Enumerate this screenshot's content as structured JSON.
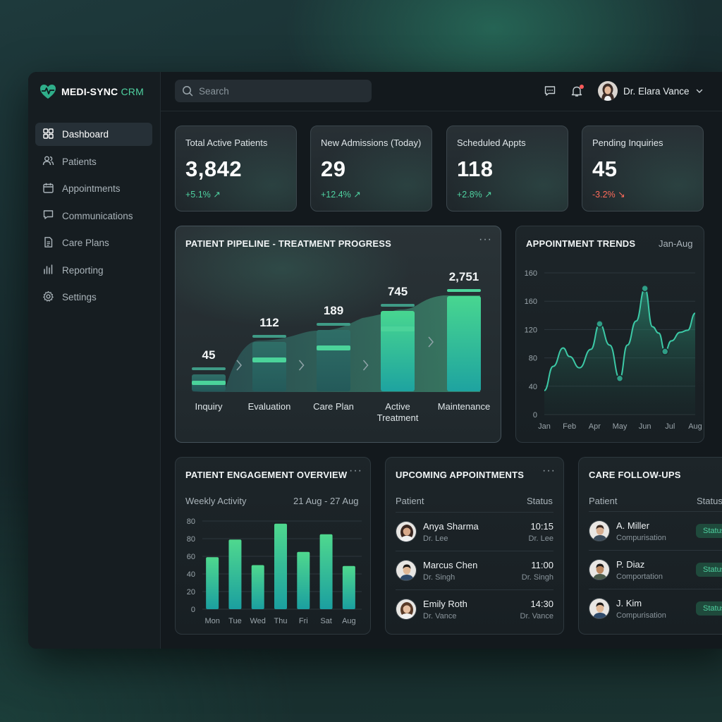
{
  "app": {
    "name": "MEDI-SYNC",
    "name_accent": "CRM",
    "accent_color": "#4fd1a0"
  },
  "sidebar": {
    "items": [
      {
        "label": "Dashboard",
        "icon": "grid-icon",
        "active": true
      },
      {
        "label": "Patients",
        "icon": "users-icon"
      },
      {
        "label": "Appointments",
        "icon": "calendar-icon"
      },
      {
        "label": "Communications",
        "icon": "message-icon"
      },
      {
        "label": "Care Plans",
        "icon": "document-icon"
      },
      {
        "label": "Reporting",
        "icon": "bar-chart-icon"
      },
      {
        "label": "Settings",
        "icon": "gear-icon"
      }
    ]
  },
  "topbar": {
    "search_placeholder": "Search",
    "user_name": "Dr. Elara Vance"
  },
  "stats": [
    {
      "label": "Total Active Patients",
      "value": "3,842",
      "change": "+5.1%",
      "direction": "up"
    },
    {
      "label": "New Admissions (Today)",
      "value": "29",
      "change": "+12.4%",
      "direction": "up"
    },
    {
      "label": "Scheduled Appts",
      "value": "118",
      "change": "+2.8%",
      "direction": "up"
    },
    {
      "label": "Pending Inquiries",
      "value": "45",
      "change": "-3.2%",
      "direction": "down"
    }
  ],
  "pipeline": {
    "title": "PATIENT PIPELINE - TREATMENT PROGRESS",
    "more": "···",
    "stages": [
      {
        "label": "Inquiry",
        "value": "45"
      },
      {
        "label": "Evaluation",
        "value": "112"
      },
      {
        "label": "Care Plan",
        "value": "189"
      },
      {
        "label": "Active Treatment",
        "value": "745"
      },
      {
        "label": "Maintenance",
        "value": "2,751"
      }
    ]
  },
  "trends": {
    "title": "APPOINTMENT TRENDS",
    "range": "Jan-Aug"
  },
  "engagement": {
    "title": "PATIENT ENGAGEMENT OVERVIEW",
    "more": "···",
    "subtitle": "Weekly Activity",
    "date_range": "21 Aug - 27 Aug"
  },
  "appointments": {
    "title": "UPCOMING APPOINTMENTS",
    "more": "···",
    "col_patient": "Patient",
    "col_status": "Status",
    "rows": [
      {
        "name": "Anya Sharma",
        "doctor": "Dr. Lee",
        "time": "10:15",
        "status_doctor": "Dr. Lee"
      },
      {
        "name": "Marcus Chen",
        "doctor": "Dr. Singh",
        "time": "11:00",
        "status_doctor": "Dr. Singh"
      },
      {
        "name": "Emily Roth",
        "doctor": "Dr. Vance",
        "time": "14:30",
        "status_doctor": "Dr. Vance"
      }
    ]
  },
  "followups": {
    "title": "CARE FOLLOW-UPS",
    "col_patient": "Patient",
    "col_status": "Status",
    "rows": [
      {
        "name": "A. Miller",
        "sub": "Compurisation",
        "status": "Status"
      },
      {
        "name": "P. Diaz",
        "sub": "Comportation",
        "status": "Status"
      },
      {
        "name": "J. Kim",
        "sub": "Compurisation",
        "status": "Status"
      }
    ]
  },
  "chart_data": [
    {
      "type": "area",
      "title": "APPOINTMENT TRENDS",
      "categories": [
        "Jan",
        "Feb",
        "Apr",
        "May",
        "Jun",
        "Jul",
        "Aug"
      ],
      "y_tick_labels": [
        "0",
        "40",
        "80",
        "120",
        "160",
        "160"
      ],
      "ylim": [
        0,
        200
      ],
      "grid": true,
      "series": [
        {
          "x": [
            0,
            0.35,
            0.75,
            1.0,
            1.4,
            1.85,
            2.2,
            2.6,
            3.0,
            3.3,
            3.65,
            4.0,
            4.3,
            4.55,
            4.8,
            5.05,
            5.4,
            5.7,
            6.0
          ],
          "values": [
            34,
            68,
            94,
            82,
            66,
            92,
            128,
            98,
            51,
            98,
            132,
            178,
            124,
            115,
            89,
            104,
            116,
            119,
            143
          ]
        }
      ],
      "highlighted_points": [
        {
          "x": 2.2,
          "y": 128
        },
        {
          "x": 3.0,
          "y": 51
        },
        {
          "x": 4.0,
          "y": 178
        },
        {
          "x": 4.8,
          "y": 89
        }
      ]
    },
    {
      "type": "bar",
      "title": "Weekly Activity",
      "categories": [
        "Mon",
        "Tue",
        "Wed",
        "Thu",
        "Fri",
        "Sat",
        "Aug"
      ],
      "values": [
        59,
        79,
        50,
        97,
        65,
        85,
        49
      ],
      "y_tick_labels": [
        "0",
        "20",
        "40",
        "60",
        "80",
        "80"
      ],
      "ylim": [
        0,
        100
      ],
      "grid": true
    }
  ]
}
